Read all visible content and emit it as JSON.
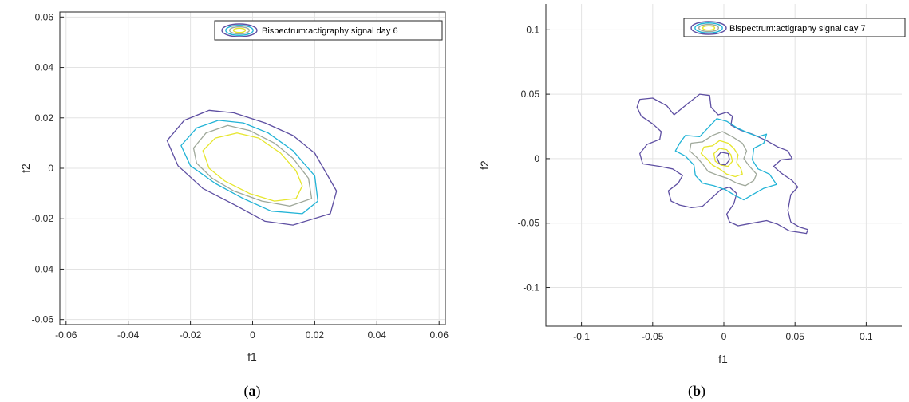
{
  "chart_data": [
    {
      "type": "contour",
      "panel_label": "a",
      "xlabel": "f1",
      "ylabel": "f2",
      "xlim": [
        -0.062,
        0.062
      ],
      "ylim": [
        -0.062,
        0.062
      ],
      "xticks": [
        -0.06,
        -0.04,
        -0.02,
        0,
        0.02,
        0.04,
        0.06
      ],
      "xtick_labels": [
        "-0.06",
        "-0.04",
        "-0.02",
        "0",
        "0.02",
        "0.04",
        "0.06"
      ],
      "yticks": [
        -0.06,
        -0.04,
        -0.02,
        0,
        0.02,
        0.04,
        0.06
      ],
      "ytick_labels": [
        "-0.06",
        "-0.04",
        "-0.02",
        "0",
        "0.02",
        "0.04",
        "0.06"
      ],
      "grid": true,
      "legend": {
        "label": "Bispectrum:actigraphy signal day 6",
        "position": "top-right"
      },
      "contours": [
        {
          "level": 1,
          "color": "#5e4fa2",
          "points": [
            [
              -0.0275,
              0.011
            ],
            [
              -0.022,
              0.019
            ],
            [
              -0.014,
              0.023
            ],
            [
              -0.006,
              0.022
            ],
            [
              0.004,
              0.018
            ],
            [
              0.013,
              0.013
            ],
            [
              0.02,
              0.006
            ],
            [
              0.027,
              -0.009
            ],
            [
              0.025,
              -0.018
            ],
            [
              0.013,
              -0.0225
            ],
            [
              0.004,
              -0.021
            ],
            [
              -0.005,
              -0.015
            ],
            [
              -0.016,
              -0.008
            ],
            [
              -0.024,
              0.001
            ]
          ]
        },
        {
          "level": 2,
          "color": "#21b3d6",
          "points": [
            [
              -0.023,
              0.009
            ],
            [
              -0.018,
              0.016
            ],
            [
              -0.011,
              0.019
            ],
            [
              -0.003,
              0.018
            ],
            [
              0.005,
              0.014
            ],
            [
              0.013,
              0.007
            ],
            [
              0.02,
              -0.003
            ],
            [
              0.021,
              -0.013
            ],
            [
              0.016,
              -0.018
            ],
            [
              0.006,
              -0.017
            ],
            [
              -0.003,
              -0.012
            ],
            [
              -0.012,
              -0.006
            ],
            [
              -0.02,
              0.001
            ]
          ]
        },
        {
          "level": 3,
          "color": "#9fa89a",
          "points": [
            [
              -0.019,
              0.008
            ],
            [
              -0.015,
              0.014
            ],
            [
              -0.008,
              0.017
            ],
            [
              -0.001,
              0.015
            ],
            [
              0.007,
              0.01
            ],
            [
              0.013,
              0.004
            ],
            [
              0.018,
              -0.004
            ],
            [
              0.019,
              -0.012
            ],
            [
              0.012,
              -0.015
            ],
            [
              0.003,
              -0.013
            ],
            [
              -0.006,
              -0.009
            ],
            [
              -0.013,
              -0.004
            ],
            [
              -0.018,
              0.002
            ]
          ]
        },
        {
          "level": 4,
          "color": "#e6e62c",
          "points": [
            [
              -0.016,
              0.007
            ],
            [
              -0.012,
              0.012
            ],
            [
              -0.005,
              0.014
            ],
            [
              0.002,
              0.012
            ],
            [
              0.009,
              0.006
            ],
            [
              0.014,
              -0.001
            ],
            [
              0.016,
              -0.007
            ],
            [
              0.014,
              -0.012
            ],
            [
              0.007,
              -0.013
            ],
            [
              -0.001,
              -0.01
            ],
            [
              -0.009,
              -0.005
            ],
            [
              -0.014,
              0.0
            ]
          ]
        }
      ]
    },
    {
      "type": "contour",
      "panel_label": "b",
      "xlabel": "f1",
      "ylabel": "f2",
      "xlim": [
        -0.125,
        0.125
      ],
      "ylim": [
        -0.13,
        0.12
      ],
      "xticks": [
        -0.1,
        -0.05,
        0,
        0.05,
        0.1
      ],
      "xtick_labels": [
        "-0.1",
        "-0.05",
        "0",
        "0.05",
        "0.1"
      ],
      "yticks": [
        -0.1,
        -0.05,
        0,
        0.05,
        0.1
      ],
      "ytick_labels": [
        "-0.1",
        "-0.05",
        "0",
        "0.05",
        "0.1"
      ],
      "grid": true,
      "legend": {
        "label": "Bispectrum:actigraphy signal day 7",
        "position": "top-right"
      },
      "contours": [
        {
          "level": 1,
          "color": "#5e4fa2",
          "points": [
            [
              -0.059,
              0.046
            ],
            [
              -0.05,
              0.047
            ],
            [
              -0.04,
              0.041
            ],
            [
              -0.035,
              0.034
            ],
            [
              -0.025,
              0.043
            ],
            [
              -0.017,
              0.05
            ],
            [
              -0.01,
              0.049
            ],
            [
              -0.009,
              0.04
            ],
            [
              -0.004,
              0.034
            ],
            [
              0.002,
              0.036
            ],
            [
              0.006,
              0.033
            ],
            [
              0.005,
              0.026
            ],
            [
              0.012,
              0.022
            ],
            [
              0.02,
              0.019
            ],
            [
              0.03,
              0.014
            ],
            [
              0.038,
              0.009
            ],
            [
              0.045,
              0.006
            ],
            [
              0.048,
              0.0
            ],
            [
              0.04,
              -0.001
            ],
            [
              0.035,
              -0.006
            ],
            [
              0.04,
              -0.011
            ],
            [
              0.048,
              -0.017
            ],
            [
              0.052,
              -0.022
            ],
            [
              0.047,
              -0.028
            ],
            [
              0.045,
              -0.04
            ],
            [
              0.047,
              -0.049
            ],
            [
              0.053,
              -0.053
            ],
            [
              0.059,
              -0.055
            ],
            [
              0.058,
              -0.058
            ],
            [
              0.046,
              -0.056
            ],
            [
              0.038,
              -0.051
            ],
            [
              0.03,
              -0.048
            ],
            [
              0.02,
              -0.05
            ],
            [
              0.01,
              -0.052
            ],
            [
              0.004,
              -0.049
            ],
            [
              0.002,
              -0.043
            ],
            [
              0.007,
              -0.035
            ],
            [
              0.009,
              -0.027
            ],
            [
              0.004,
              -0.022
            ],
            [
              -0.002,
              -0.024
            ],
            [
              -0.008,
              -0.03
            ],
            [
              -0.015,
              -0.037
            ],
            [
              -0.023,
              -0.038
            ],
            [
              -0.031,
              -0.036
            ],
            [
              -0.037,
              -0.033
            ],
            [
              -0.039,
              -0.025
            ],
            [
              -0.032,
              -0.019
            ],
            [
              -0.029,
              -0.013
            ],
            [
              -0.036,
              -0.008
            ],
            [
              -0.045,
              -0.006
            ],
            [
              -0.057,
              -0.004
            ],
            [
              -0.059,
              0.004
            ],
            [
              -0.054,
              0.011
            ],
            [
              -0.045,
              0.015
            ],
            [
              -0.044,
              0.021
            ],
            [
              -0.05,
              0.027
            ],
            [
              -0.058,
              0.033
            ],
            [
              -0.061,
              0.04
            ]
          ]
        },
        {
          "level": 2,
          "color": "#21b3d6",
          "points": [
            [
              -0.027,
              0.018
            ],
            [
              -0.017,
              0.017
            ],
            [
              -0.011,
              0.024
            ],
            [
              -0.005,
              0.031
            ],
            [
              0.002,
              0.029
            ],
            [
              0.009,
              0.024
            ],
            [
              0.017,
              0.02
            ],
            [
              0.024,
              0.017
            ],
            [
              0.03,
              0.019
            ],
            [
              0.028,
              0.012
            ],
            [
              0.021,
              0.008
            ],
            [
              0.02,
              -0.001
            ],
            [
              0.024,
              -0.008
            ],
            [
              0.032,
              -0.012
            ],
            [
              0.037,
              -0.02
            ],
            [
              0.028,
              -0.023
            ],
            [
              0.02,
              -0.028
            ],
            [
              0.014,
              -0.032
            ],
            [
              0.007,
              -0.028
            ],
            [
              0.001,
              -0.024
            ],
            [
              -0.007,
              -0.021
            ],
            [
              -0.015,
              -0.019
            ],
            [
              -0.02,
              -0.013
            ],
            [
              -0.021,
              -0.005
            ],
            [
              -0.027,
              0.002
            ],
            [
              -0.034,
              0.006
            ],
            [
              -0.031,
              0.012
            ]
          ]
        },
        {
          "level": 3,
          "color": "#9fa89a",
          "points": [
            [
              -0.023,
              0.012
            ],
            [
              -0.015,
              0.013
            ],
            [
              -0.008,
              0.018
            ],
            [
              -0.001,
              0.021
            ],
            [
              0.006,
              0.017
            ],
            [
              0.013,
              0.012
            ],
            [
              0.016,
              0.006
            ],
            [
              0.014,
              0.0
            ],
            [
              0.018,
              -0.006
            ],
            [
              0.023,
              -0.012
            ],
            [
              0.021,
              -0.017
            ],
            [
              0.015,
              -0.021
            ],
            [
              0.009,
              -0.019
            ],
            [
              0.002,
              -0.015
            ],
            [
              -0.004,
              -0.013
            ],
            [
              -0.011,
              -0.01
            ],
            [
              -0.015,
              -0.004
            ],
            [
              -0.019,
              0.001
            ],
            [
              -0.024,
              0.006
            ]
          ]
        },
        {
          "level": 4,
          "color": "#e6e62c",
          "points": [
            [
              -0.014,
              0.009
            ],
            [
              -0.008,
              0.01
            ],
            [
              -0.003,
              0.014
            ],
            [
              0.003,
              0.012
            ],
            [
              0.007,
              0.008
            ],
            [
              0.01,
              0.003
            ],
            [
              0.009,
              -0.003
            ],
            [
              0.012,
              -0.008
            ],
            [
              0.013,
              -0.012
            ],
            [
              0.008,
              -0.014
            ],
            [
              0.002,
              -0.012
            ],
            [
              -0.003,
              -0.008
            ],
            [
              -0.008,
              -0.005
            ],
            [
              -0.012,
              0.0
            ],
            [
              -0.016,
              0.004
            ]
          ]
        },
        {
          "level": 5,
          "color": "#e6e62c",
          "points": [
            [
              -0.007,
              0.004
            ],
            [
              -0.003,
              0.008
            ],
            [
              0.002,
              0.007
            ],
            [
              0.005,
              0.003
            ],
            [
              0.006,
              -0.002
            ],
            [
              0.003,
              -0.006
            ],
            [
              -0.002,
              -0.005
            ],
            [
              -0.006,
              -0.002
            ]
          ]
        },
        {
          "level": 6,
          "color": "#5e4fa2",
          "points": [
            [
              -0.005,
              0.001
            ],
            [
              -0.002,
              0.005
            ],
            [
              0.003,
              0.004
            ],
            [
              0.004,
              -0.001
            ],
            [
              0.001,
              -0.005
            ],
            [
              -0.003,
              -0.004
            ]
          ]
        }
      ]
    }
  ],
  "captions": [
    {
      "open": "(",
      "letter": "a",
      "close": ")"
    },
    {
      "open": "(",
      "letter": "b",
      "close": ")"
    }
  ]
}
